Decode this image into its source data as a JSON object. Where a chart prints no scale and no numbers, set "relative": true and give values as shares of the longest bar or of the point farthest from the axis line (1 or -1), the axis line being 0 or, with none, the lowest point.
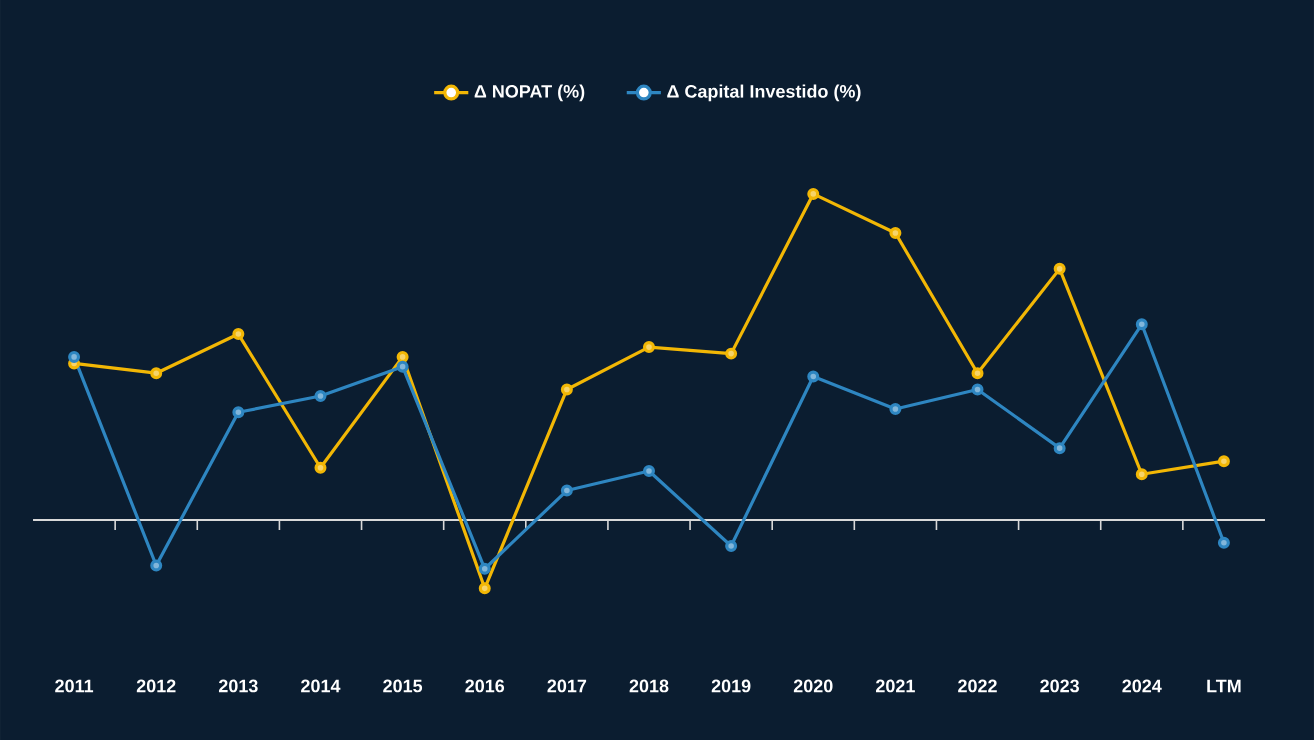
{
  "chart_data": {
    "type": "line",
    "relative": true,
    "categories": [
      "2011",
      "2012",
      "2013",
      "2014",
      "2015",
      "2016",
      "2017",
      "2018",
      "2019",
      "2020",
      "2021",
      "2022",
      "2023",
      "2024",
      "LTM"
    ],
    "series": [
      {
        "name": "Δ NOPAT (%)",
        "color": "#f2b705",
        "values": [
          0.48,
          0.45,
          0.57,
          0.16,
          0.5,
          -0.21,
          0.4,
          0.53,
          0.51,
          1,
          0.88,
          0.45,
          0.77,
          0.14,
          0.18
        ]
      },
      {
        "name": "Δ Capital Investido (%)",
        "color": "#2e86c1",
        "values": [
          0.5,
          -0.14,
          0.33,
          0.38,
          0.47,
          -0.15,
          0.09,
          0.15,
          -0.08,
          0.44,
          0.34,
          0.4,
          0.22,
          0.6,
          -0.07
        ]
      }
    ],
    "legend": "top",
    "marker": "circle",
    "line_style": "solid"
  }
}
